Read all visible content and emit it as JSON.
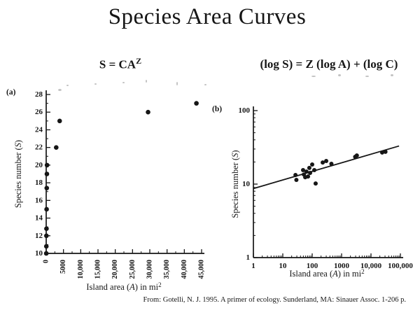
{
  "title": "Species Area Curves",
  "equations": {
    "left": {
      "base": "S = CA",
      "sup": "Z"
    },
    "right": "(log S) = Z (log A) + (log C)"
  },
  "citation": "From: Gotelli, N. J. 1995. A primer of ecology. Sunderland, MA: Sinauer Assoc. 1-206 p.",
  "chart_data": [
    {
      "id": "a",
      "panel_label": "(a)",
      "type": "scatter",
      "x_scale": "linear",
      "y_scale": "linear",
      "xlim": [
        0,
        45000
      ],
      "ylim": [
        10,
        28
      ],
      "x_ticks": [
        0,
        5000,
        10000,
        15000,
        20000,
        25000,
        30000,
        35000,
        40000,
        45000
      ],
      "x_tick_labels": [
        "0",
        "5000",
        "10,000",
        "15,000",
        "20,000",
        "25,000",
        "30,000",
        "35,000",
        "40,000",
        "45,000"
      ],
      "x_minor_step": 2500,
      "x_tick_rotated": true,
      "y_ticks": [
        10,
        12,
        14,
        16,
        18,
        20,
        22,
        24,
        26,
        28
      ],
      "y_tick_labels": [
        "10",
        "12",
        "14",
        "16",
        "18",
        "20",
        "22",
        "24",
        "26",
        "28"
      ],
      "y_minor_step": 1,
      "xlabel": {
        "pre": "Island area (",
        "var": "A",
        "post": ") in mi",
        "sup": "2"
      },
      "ylabel": {
        "pre": "Species number (",
        "var": "S",
        "post": ")"
      },
      "grid": false,
      "points": [
        [
          20,
          10
        ],
        [
          40,
          10.8
        ],
        [
          60,
          12
        ],
        [
          80,
          12.8
        ],
        [
          120,
          15
        ],
        [
          160,
          17.4
        ],
        [
          200,
          19
        ],
        [
          240,
          20
        ],
        [
          2900,
          22
        ],
        [
          3900,
          25
        ],
        [
          29500,
          26
        ],
        [
          43500,
          27
        ]
      ]
    },
    {
      "id": "b",
      "panel_label": "(b)",
      "type": "scatter",
      "x_scale": "log",
      "y_scale": "log",
      "xlim": [
        1,
        100000
      ],
      "ylim": [
        1,
        100
      ],
      "x_ticks": [
        1,
        10,
        100,
        1000,
        10000,
        100000
      ],
      "x_tick_labels": [
        "1",
        "10",
        "100",
        "1000",
        "10,000",
        "100,000"
      ],
      "y_ticks": [
        1,
        10,
        100
      ],
      "y_tick_labels": [
        "1",
        "10",
        "100"
      ],
      "xlabel": {
        "pre": "Island area (",
        "var": "A",
        "post": ") in mi",
        "sup": "2"
      },
      "ylabel": {
        "pre": "Species number (",
        "var": "S",
        "post": ")"
      },
      "grid": false,
      "points": [
        [
          27,
          13.3
        ],
        [
          29,
          11.4
        ],
        [
          49,
          15.5
        ],
        [
          52,
          13.5
        ],
        [
          58,
          12.4
        ],
        [
          64,
          14.8
        ],
        [
          72,
          12.7
        ],
        [
          80,
          16.6
        ],
        [
          85,
          14.2
        ],
        [
          100,
          18.5
        ],
        [
          118,
          15.5
        ],
        [
          131,
          10.2
        ],
        [
          228,
          19.7
        ],
        [
          300,
          20.6
        ],
        [
          450,
          18.9
        ],
        [
          2900,
          23.5
        ],
        [
          3300,
          24.5
        ],
        [
          24000,
          26.9
        ],
        [
          31000,
          27.5
        ]
      ],
      "line": {
        "x1": 1,
        "y1": 8.7,
        "x2": 90000,
        "y2": 33
      }
    }
  ]
}
